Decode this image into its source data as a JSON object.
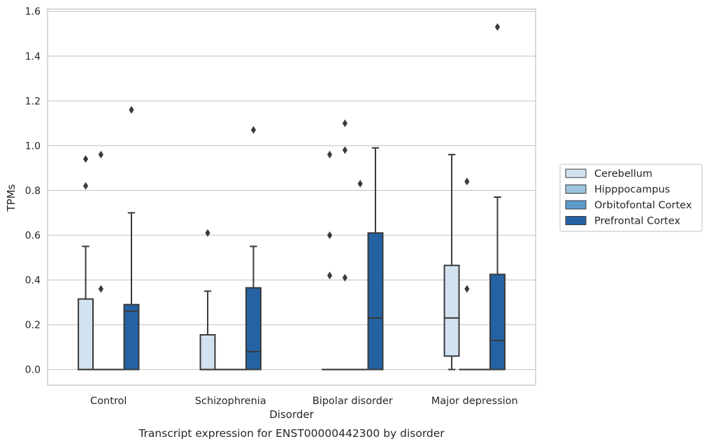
{
  "chart_data": {
    "type": "box",
    "caption": "Transcript expression for ENST00000442300 by disorder",
    "xlabel": "Disorder",
    "ylabel": "TPMs",
    "ylim": [
      -0.07,
      1.61
    ],
    "yticks": [
      0.0,
      0.2,
      0.4,
      0.6,
      0.8,
      1.0,
      1.2,
      1.4,
      1.6
    ],
    "grid": true,
    "legend_position": "right",
    "categories": [
      "Control",
      "Schizophrenia",
      "Bipolar disorder",
      "Major depression"
    ],
    "series": [
      {
        "name": "Cerebellum",
        "color": "#d2e2f0",
        "boxes": [
          {
            "q1": 0.0,
            "median": 0.0,
            "q3": 0.315,
            "whisker_low": 0.0,
            "whisker_high": 0.55,
            "outliers": [
              0.82,
              0.94
            ]
          },
          {
            "q1": 0.0,
            "median": 0.0,
            "q3": 0.155,
            "whisker_low": 0.0,
            "whisker_high": 0.35,
            "outliers": [
              0.61
            ]
          },
          {
            "q1": 0.0,
            "median": 0.0,
            "q3": 0.0,
            "whisker_low": 0.0,
            "whisker_high": 0.0,
            "outliers": [
              0.42,
              0.6,
              0.96
            ]
          },
          {
            "q1": 0.06,
            "median": 0.23,
            "q3": 0.465,
            "whisker_low": 0.0,
            "whisker_high": 0.96,
            "outliers": []
          }
        ]
      },
      {
        "name": "Hipppocampus",
        "color": "#9cc4dc",
        "boxes": [
          {
            "q1": 0.0,
            "median": 0.0,
            "q3": 0.0,
            "whisker_low": 0.0,
            "whisker_high": 0.0,
            "outliers": [
              0.36,
              0.96
            ]
          },
          {
            "q1": 0.0,
            "median": 0.0,
            "q3": 0.0,
            "whisker_low": 0.0,
            "whisker_high": 0.0,
            "outliers": []
          },
          {
            "q1": 0.0,
            "median": 0.0,
            "q3": 0.0,
            "whisker_low": 0.0,
            "whisker_high": 0.0,
            "outliers": [
              0.41,
              0.98,
              1.1
            ]
          },
          {
            "q1": 0.0,
            "median": 0.0,
            "q3": 0.0,
            "whisker_low": 0.0,
            "whisker_high": 0.0,
            "outliers": [
              0.36,
              0.84
            ]
          }
        ]
      },
      {
        "name": "Orbitofontal Cortex",
        "color": "#5b9bc9",
        "boxes": [
          {
            "q1": 0.0,
            "median": 0.0,
            "q3": 0.0,
            "whisker_low": 0.0,
            "whisker_high": 0.0,
            "outliers": []
          },
          {
            "q1": 0.0,
            "median": 0.0,
            "q3": 0.0,
            "whisker_low": 0.0,
            "whisker_high": 0.0,
            "outliers": []
          },
          {
            "q1": 0.0,
            "median": 0.0,
            "q3": 0.0,
            "whisker_low": 0.0,
            "whisker_high": 0.0,
            "outliers": [
              0.83
            ]
          },
          {
            "q1": 0.0,
            "median": 0.0,
            "q3": 0.0,
            "whisker_low": 0.0,
            "whisker_high": 0.0,
            "outliers": []
          }
        ]
      },
      {
        "name": "Prefrontal Cortex",
        "color": "#2462a3",
        "boxes": [
          {
            "q1": 0.0,
            "median": 0.26,
            "q3": 0.29,
            "whisker_low": 0.0,
            "whisker_high": 0.7,
            "outliers": [
              1.16
            ]
          },
          {
            "q1": 0.0,
            "median": 0.08,
            "q3": 0.365,
            "whisker_low": 0.0,
            "whisker_high": 0.55,
            "outliers": [
              1.07
            ]
          },
          {
            "q1": 0.0,
            "median": 0.23,
            "q3": 0.61,
            "whisker_low": 0.0,
            "whisker_high": 0.99,
            "outliers": []
          },
          {
            "q1": 0.0,
            "median": 0.13,
            "q3": 0.425,
            "whisker_low": 0.0,
            "whisker_high": 0.77,
            "outliers": [
              1.53
            ]
          }
        ]
      }
    ]
  }
}
